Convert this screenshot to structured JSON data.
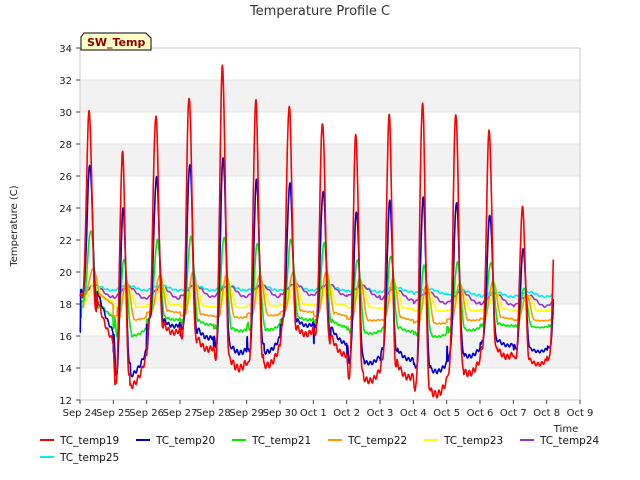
{
  "chart_data": {
    "type": "line",
    "title": "Temperature Profile C",
    "xlabel": "Time",
    "ylabel": "Temperature (C)",
    "ylim": [
      12,
      34
    ],
    "yticks": [
      12,
      14,
      16,
      18,
      20,
      22,
      24,
      26,
      28,
      30,
      32,
      34
    ],
    "xlim": [
      0,
      15
    ],
    "xticks": [
      {
        "x": 0,
        "label": "Sep 24"
      },
      {
        "x": 1,
        "label": "Sep 25"
      },
      {
        "x": 2,
        "label": "Sep 26"
      },
      {
        "x": 3,
        "label": "Sep 27"
      },
      {
        "x": 4,
        "label": "Sep 28"
      },
      {
        "x": 5,
        "label": "Sep 29"
      },
      {
        "x": 6,
        "label": "Sep 30"
      },
      {
        "x": 7,
        "label": "Oct 1"
      },
      {
        "x": 8,
        "label": "Oct 2"
      },
      {
        "x": 9,
        "label": "Oct 3"
      },
      {
        "x": 10,
        "label": "Oct 4"
      },
      {
        "x": 11,
        "label": "Oct 5"
      },
      {
        "x": 12,
        "label": "Oct 6"
      },
      {
        "x": 13,
        "label": "Oct 7"
      },
      {
        "x": 14,
        "label": "Oct 8"
      },
      {
        "x": 15,
        "label": "Oct 9"
      }
    ],
    "x_units": "days from Sep 24",
    "grid": "horizontal bands",
    "legend_position": "bottom",
    "annotation": "SW_Temp",
    "days": [
      {
        "min19": 18.5,
        "max19": 30.0,
        "min20": 18.8,
        "max20": 26.7,
        "min21": 18.2,
        "max21": 22.6,
        "min22": 18.6,
        "max22": 20.2,
        "min23": 18.4,
        "max23": 19.4,
        "base24": 18.8,
        "base25": 19.0
      },
      {
        "min19": 12.8,
        "max19": 27.4,
        "min20": 13.5,
        "max20": 23.9,
        "min21": 16.0,
        "max21": 20.8,
        "min22": 17.0,
        "max22": 19.4,
        "min23": 17.8,
        "max23": 19.0,
        "base24": 18.7,
        "base25": 19.0
      },
      {
        "min19": 16.8,
        "max19": 29.8,
        "min20": 17.0,
        "max20": 25.9,
        "min21": 17.2,
        "max21": 22.0,
        "min22": 17.6,
        "max22": 19.8,
        "min23": 18.0,
        "max23": 19.2,
        "base24": 18.7,
        "base25": 19.0
      },
      {
        "min19": 16.0,
        "max19": 31.0,
        "min20": 16.5,
        "max20": 26.8,
        "min21": 17.0,
        "max21": 22.2,
        "min22": 17.4,
        "max22": 20.0,
        "min23": 17.9,
        "max23": 19.3,
        "base24": 18.8,
        "base25": 19.0
      },
      {
        "min19": 14.6,
        "max19": 32.8,
        "min20": 15.4,
        "max20": 27.2,
        "min21": 16.5,
        "max21": 22.2,
        "min22": 17.2,
        "max22": 19.8,
        "min23": 17.8,
        "max23": 19.2,
        "base24": 18.8,
        "base25": 19.0
      },
      {
        "min19": 14.2,
        "max19": 30.6,
        "min20": 15.0,
        "max20": 25.7,
        "min21": 16.4,
        "max21": 21.8,
        "min22": 17.3,
        "max22": 19.8,
        "min23": 17.9,
        "max23": 19.2,
        "base24": 18.8,
        "base25": 19.0
      },
      {
        "min19": 16.6,
        "max19": 30.4,
        "min20": 17.0,
        "max20": 25.5,
        "min21": 17.2,
        "max21": 22.0,
        "min22": 17.6,
        "max22": 20.0,
        "min23": 18.0,
        "max23": 19.3,
        "base24": 18.9,
        "base25": 19.0
      },
      {
        "min19": 16.2,
        "max19": 29.4,
        "min20": 16.6,
        "max20": 25.1,
        "min21": 17.0,
        "max21": 21.8,
        "min22": 17.5,
        "max22": 20.0,
        "min23": 18.0,
        "max23": 19.3,
        "base24": 18.9,
        "base25": 19.0
      },
      {
        "min19": 13.4,
        "max19": 28.5,
        "min20": 14.4,
        "max20": 23.8,
        "min21": 16.2,
        "max21": 20.8,
        "min22": 17.0,
        "max22": 19.6,
        "min23": 17.8,
        "max23": 19.1,
        "base24": 18.8,
        "base25": 18.9
      },
      {
        "min19": 14.4,
        "max19": 29.7,
        "min20": 15.2,
        "max20": 24.4,
        "min21": 16.6,
        "max21": 21.0,
        "min22": 17.2,
        "max22": 19.6,
        "min23": 17.8,
        "max23": 19.1,
        "base24": 18.6,
        "base25": 18.9
      },
      {
        "min19": 12.6,
        "max19": 30.6,
        "min20": 13.9,
        "max20": 24.6,
        "min21": 16.0,
        "max21": 20.4,
        "min22": 16.8,
        "max22": 19.2,
        "min23": 17.6,
        "max23": 18.8,
        "base24": 18.4,
        "base25": 18.8
      },
      {
        "min19": 13.8,
        "max19": 30.0,
        "min20": 14.8,
        "max20": 24.4,
        "min21": 16.4,
        "max21": 20.6,
        "min22": 17.0,
        "max22": 19.3,
        "min23": 17.6,
        "max23": 18.8,
        "base24": 18.4,
        "base25": 18.7
      },
      {
        "min19": 15.3,
        "max19": 28.8,
        "min20": 15.8,
        "max20": 23.6,
        "min21": 16.8,
        "max21": 20.6,
        "min22": 17.2,
        "max22": 19.4,
        "min23": 17.7,
        "max23": 18.8,
        "base24": 18.3,
        "base25": 18.6
      },
      {
        "min19": 14.5,
        "max19": 24.0,
        "min20": 15.2,
        "max20": 21.4,
        "min21": 16.6,
        "max21": 19.0,
        "min22": 17.0,
        "max22": 18.6,
        "min23": 17.6,
        "max23": 18.5,
        "base24": 18.2,
        "base25": 18.6
      }
    ],
    "x_end": 14.2,
    "series": [
      {
        "name": "TC_temp19",
        "color": "#ff0000",
        "key": "19",
        "peak_sharpness": 3.0,
        "lag": 0.0
      },
      {
        "name": "TC_temp20",
        "color": "#0000cc",
        "key": "20",
        "peak_sharpness": 3.0,
        "lag": 0.02
      },
      {
        "name": "TC_temp21",
        "color": "#00ee00",
        "key": "21",
        "peak_sharpness": 2.2,
        "lag": 0.05
      },
      {
        "name": "TC_temp22",
        "color": "#ff9900",
        "key": "22",
        "peak_sharpness": 1.6,
        "lag": 0.12
      },
      {
        "name": "TC_temp23",
        "color": "#ffff00",
        "key": "23",
        "peak_sharpness": 1.3,
        "lag": 0.18
      },
      {
        "name": "TC_temp24",
        "color": "#9933cc",
        "key": "24",
        "peak_sharpness": 1.0,
        "lag": 0.0
      },
      {
        "name": "TC_temp25",
        "color": "#00eeee",
        "key": "25",
        "peak_sharpness": 1.0,
        "lag": 0.0
      }
    ]
  }
}
